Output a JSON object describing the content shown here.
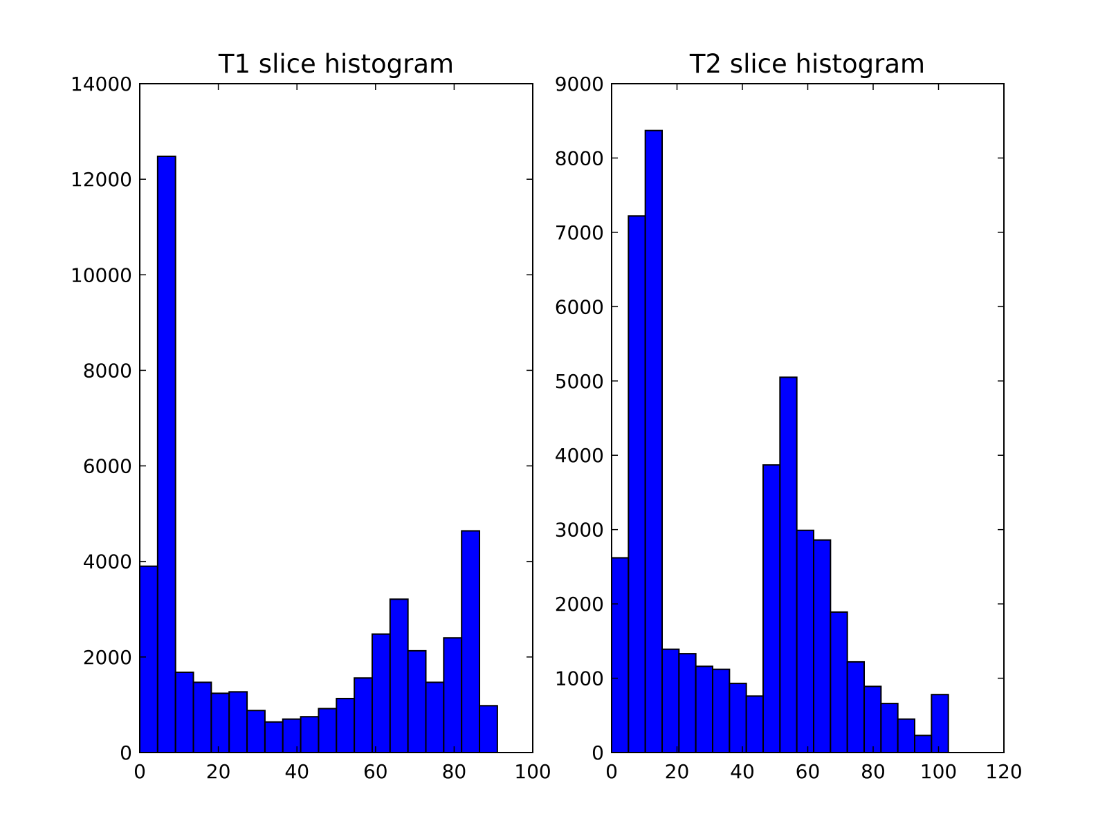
{
  "chart_data": [
    {
      "type": "bar",
      "title": "T1 slice histogram",
      "xlabel": "",
      "ylabel": "",
      "bin_edges": [
        0,
        4.55,
        9.1,
        13.65,
        18.2,
        22.75,
        27.3,
        31.85,
        36.4,
        40.95,
        45.5,
        50.05,
        54.6,
        59.15,
        63.7,
        68.25,
        72.8,
        77.35,
        81.9,
        86.45,
        91.0
      ],
      "values": [
        3900,
        12480,
        1680,
        1470,
        1240,
        1270,
        880,
        640,
        700,
        750,
        920,
        1130,
        1560,
        2480,
        3210,
        2130,
        1470,
        2400,
        4640,
        980
      ],
      "xlim": [
        0,
        100
      ],
      "ylim": [
        0,
        14000
      ],
      "xticks": [
        "0",
        "20",
        "40",
        "60",
        "80",
        "100"
      ],
      "yticks": [
        "0",
        "2000",
        "4000",
        "6000",
        "8000",
        "10000",
        "12000",
        "14000"
      ],
      "bar_color": "#0000ff",
      "edge_color": "#000000",
      "grid": false
    },
    {
      "type": "bar",
      "title": "T2 slice histogram",
      "xlabel": "",
      "ylabel": "",
      "bin_edges": [
        0,
        5.15,
        10.3,
        15.45,
        20.6,
        25.75,
        30.9,
        36.05,
        41.2,
        46.35,
        51.5,
        56.65,
        61.8,
        66.95,
        72.1,
        77.25,
        82.4,
        87.55,
        92.7,
        97.85,
        103.0
      ],
      "values": [
        2620,
        7220,
        8370,
        1390,
        1330,
        1160,
        1120,
        930,
        760,
        3870,
        5050,
        2990,
        2860,
        1890,
        1220,
        890,
        660,
        450,
        230,
        780
      ],
      "xlim": [
        0,
        120
      ],
      "ylim": [
        0,
        9000
      ],
      "xticks": [
        "0",
        "20",
        "40",
        "60",
        "80",
        "100",
        "120"
      ],
      "yticks": [
        "0",
        "1000",
        "2000",
        "3000",
        "4000",
        "5000",
        "6000",
        "7000",
        "8000",
        "9000"
      ],
      "bar_color": "#0000ff",
      "edge_color": "#000000",
      "grid": false
    }
  ]
}
